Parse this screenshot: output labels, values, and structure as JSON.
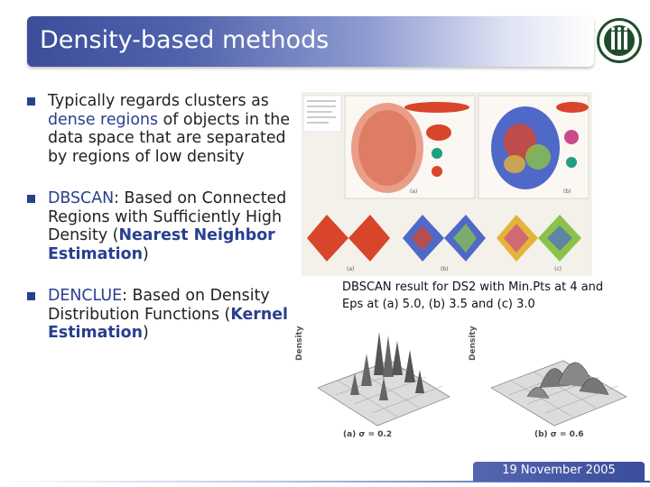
{
  "slide": {
    "title": "Density-based methods",
    "footer_date": "19 November 2005"
  },
  "bullets": [
    {
      "runs": [
        "Typically regards clusters as ",
        "dense regions",
        " of objects in the data space that are separated by regions of low density"
      ]
    },
    {
      "runs": [
        "DBSCAN",
        ": Based on Connected Regions with Sufficiently High Density (",
        "Nearest Neighbor Estimation",
        ")"
      ]
    },
    {
      "runs": [
        "DENCLUE",
        ": Based on Density Distribution Functions (",
        "Kernel Estimation",
        ")"
      ]
    }
  ],
  "figures": {
    "dbscan_caption": "DBSCAN result for DS2 with Min.Pts at 4 and Eps at (a) 5.0, (b) 3.5 and (c) 3.0",
    "dbscan_top_label_a": "(a)",
    "dbscan_top_label_b": "(b)",
    "dbscan_bottom_label_a": "(a)",
    "dbscan_bottom_label_b": "(b)",
    "dbscan_bottom_label_c": "(c)",
    "denclue_axis_label": "Density",
    "denclue_label_a": "(a) σ = 0.2",
    "denclue_label_b": "(b) σ = 0.6"
  },
  "colors": {
    "title_bar": "#3c4d9a",
    "bullet_marker": "#27408b",
    "highlight_text": "#2a3f8f"
  }
}
